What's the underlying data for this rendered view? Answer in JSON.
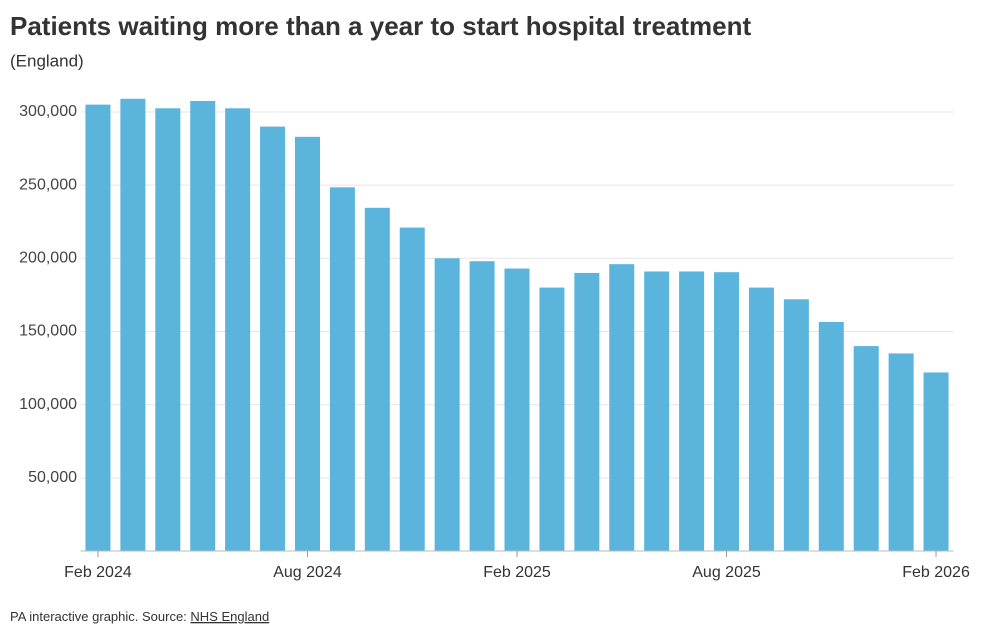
{
  "chart_data": {
    "type": "bar",
    "title": "Patients waiting more than a year to start hospital treatment",
    "subtitle": "(England)",
    "source_prefix": "PA interactive graphic. Source:",
    "source_link": "NHS England",
    "categories": [
      "Feb 2024",
      null,
      null,
      null,
      null,
      null,
      "Aug 2024",
      null,
      null,
      null,
      null,
      null,
      "Feb 2025",
      null,
      null,
      null,
      null,
      null,
      "Aug 2025",
      null,
      null,
      null,
      null,
      null,
      "Feb 2026"
    ],
    "values": [
      305000,
      309000,
      302500,
      307500,
      302500,
      290000,
      283000,
      248500,
      234500,
      221000,
      200000,
      198000,
      193000,
      180000,
      190000,
      196000,
      191000,
      191000,
      190500,
      180000,
      172000,
      156500,
      140000,
      135000,
      122000
    ],
    "color": "#5ab4dc",
    "ylim": [
      0,
      315000
    ],
    "yticks": [
      {
        "value": 50000,
        "label": "50,000"
      },
      {
        "value": 100000,
        "label": "100,000"
      },
      {
        "value": 150000,
        "label": "150,000"
      },
      {
        "value": 200000,
        "label": "200,000"
      },
      {
        "value": 250000,
        "label": "250,000"
      },
      {
        "value": 300000,
        "label": "300,000"
      }
    ],
    "grid": true
  }
}
